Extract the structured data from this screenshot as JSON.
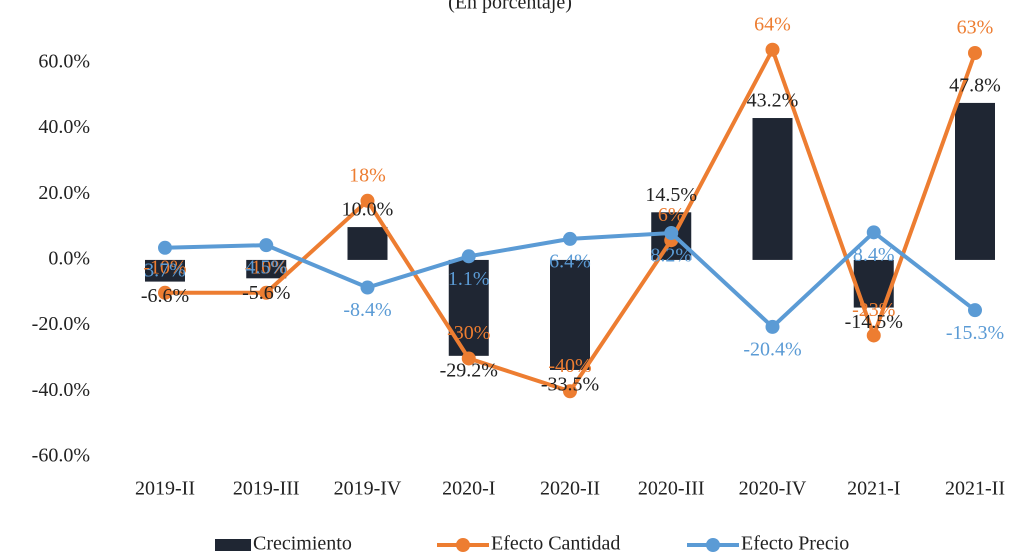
{
  "chart_data": {
    "type": "bar-line",
    "subtitle": "(En porcentaje)",
    "categories": [
      "2019-II",
      "2019-III",
      "2019-IV",
      "2020-I",
      "2020-II",
      "2020-III",
      "2020-IV",
      "2021-I",
      "2021-II"
    ],
    "series": [
      {
        "name": "Crecimiento",
        "type": "bar",
        "color": "#1f2633",
        "values": [
          -6.6,
          -5.6,
          10.0,
          -29.2,
          -33.5,
          14.5,
          43.2,
          -14.5,
          47.8
        ],
        "value_labels": [
          "-6.6%",
          "-5.6%",
          "10.0%",
          "-29.2%",
          "-33.5%",
          "14.5%",
          "43.2%",
          "-14.5%",
          "47.8%"
        ]
      },
      {
        "name": "Efecto Cantidad",
        "type": "line",
        "color": "#ed7d31",
        "values": [
          -10,
          -10,
          18,
          -30,
          -40,
          6,
          64,
          -23,
          63
        ],
        "value_labels": [
          "-10%",
          "-10%",
          "18%",
          "-30%",
          "-40%",
          "6%",
          "64%",
          "-23%",
          "63%"
        ]
      },
      {
        "name": "Efecto Precio",
        "type": "line",
        "color": "#5b9bd5",
        "values": [
          3.7,
          4.5,
          -8.4,
          1.1,
          6.4,
          8.2,
          -20.4,
          8.4,
          -15.3
        ],
        "value_labels": [
          "3.7%",
          "4.5%",
          "-8.4%",
          "1.1%",
          "6.4%",
          "8.2%",
          "-20.4%",
          "8.4%",
          "-15.3%"
        ]
      }
    ],
    "ylim": [
      -60,
      70
    ],
    "yticks": [
      {
        "value": -60,
        "label": "-60.0%"
      },
      {
        "value": -40,
        "label": "-40.0%"
      },
      {
        "value": -20,
        "label": "-20.0%"
      },
      {
        "value": 0,
        "label": "0.0%"
      },
      {
        "value": 20,
        "label": "20.0%"
      },
      {
        "value": 40,
        "label": "40.0%"
      },
      {
        "value": 60,
        "label": "60.0%"
      }
    ],
    "legend": "bottom",
    "grid": false
  }
}
